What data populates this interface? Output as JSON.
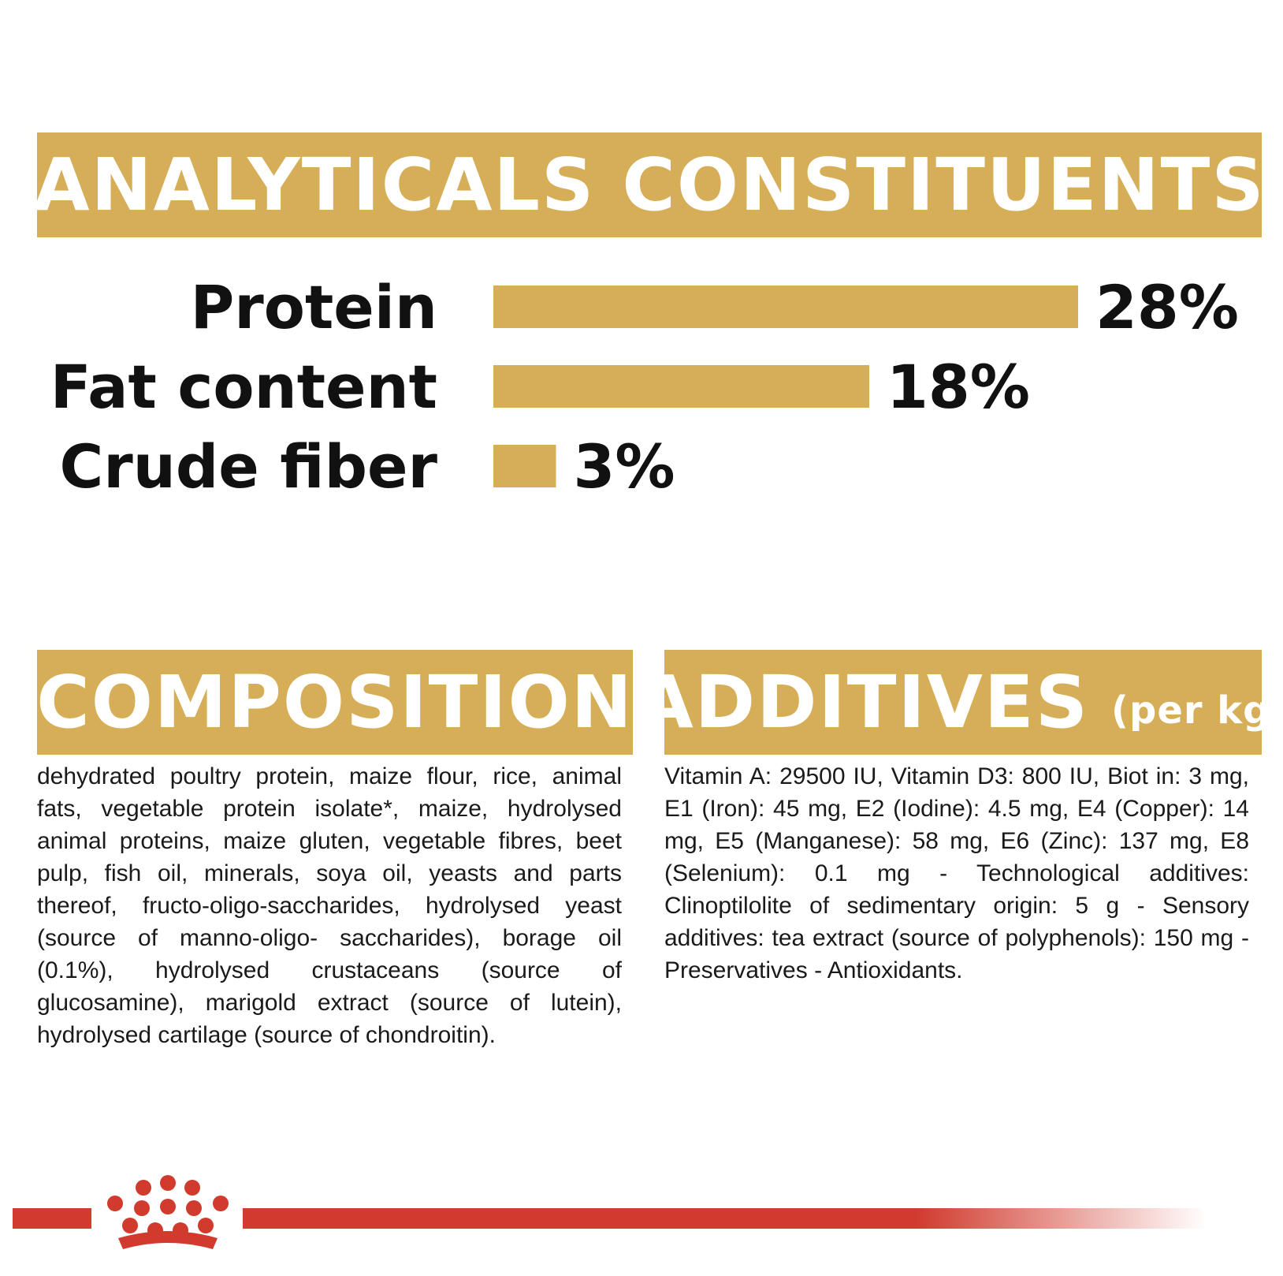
{
  "analyticals": {
    "title": "ANALYTICALS CONSTITUENTS"
  },
  "chart_data": {
    "type": "bar",
    "orientation": "horizontal",
    "categories": [
      "Protein",
      "Fat content",
      "Crude fiber"
    ],
    "values": [
      28,
      18,
      3
    ],
    "value_labels": [
      "28%",
      "18%",
      "3%"
    ],
    "unit": "%",
    "grid": false,
    "legend": "none",
    "bar_color": "#d6ae57"
  },
  "composition": {
    "title": "COMPOSITION",
    "text": "dehydrated poultry protein, maize flour, rice, animal fats, vegetable protein isolate*, maize, hydrolysed animal proteins, maize gluten, vegetable fibres, beet pulp, fish oil, minerals, soya oil, yeasts and parts thereof, fructo-oligo-saccharides, hydrolysed yeast (source of manno-oligo- saccharides), borage oil (0.1%), hydrolysed crustaceans (source of glucosamine), marigold extract (source of lutein), hydrolysed cartilage (source of chondroitin)."
  },
  "additives": {
    "title": "ADDITIVES",
    "unit": "(per kg)",
    "text": "Vitamin A: 29500 IU, Vitamin D3: 800 IU, Biot in: 3 mg, E1 (Iron): 45 mg, E2 (Iodine): 4.5 mg, E4 (Copper): 14 mg, E5 (Manganese): 58 mg, E6 (Zinc): 137 mg, E8 (Selenium): 0.1 mg - Technological additives: Clinoptilolite of sedimentary origin: 5 g - Sensory additives: tea extract (source of polyphenols): 150 mg - Preservatives - Antioxidants."
  },
  "footer": {
    "logo_icon": "crown-icon",
    "accent_color": "#d13b2e"
  },
  "colors": {
    "banner": "#d6ae57",
    "text": "#111111"
  }
}
